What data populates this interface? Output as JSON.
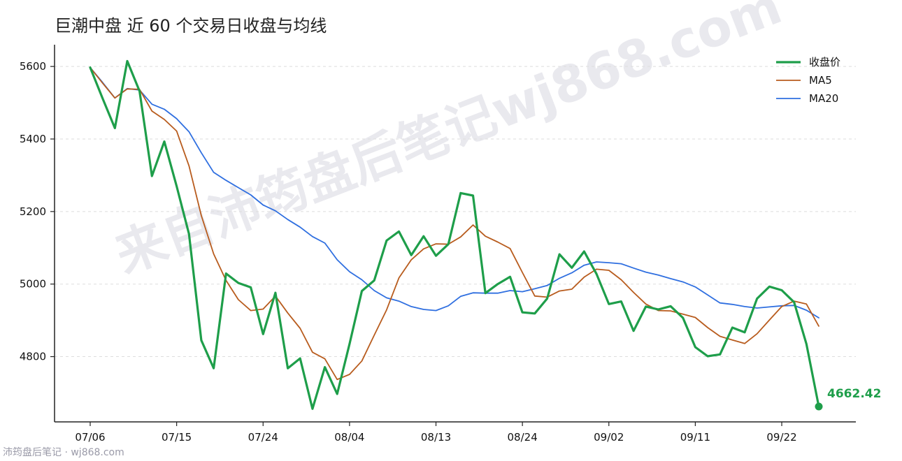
{
  "chart_data": {
    "type": "line",
    "title": "巨潮中盘 近 60 个交易日收盘与均线",
    "xlabel": "",
    "ylabel": "",
    "x_tick_labels": [
      "07/06",
      "07/15",
      "07/24",
      "08/04",
      "08/13",
      "08/24",
      "09/02",
      "09/11",
      "09/22"
    ],
    "x_tick_index": [
      0,
      7,
      14,
      21,
      28,
      35,
      42,
      49,
      56
    ],
    "ylim": [
      4620,
      5660
    ],
    "y_ticks": [
      4800,
      5000,
      5200,
      5400,
      5600
    ],
    "grid": "horizontal dashed",
    "legend_position": "top-right",
    "series": [
      {
        "name": "收盘价",
        "color": "#1e9e4a",
        "values": [
          5597,
          5512,
          5430,
          5615,
          5532,
          5298,
          5393,
          5270,
          5138,
          4845,
          4768,
          5029,
          5003,
          4991,
          4862,
          4976,
          4768,
          4795,
          4656,
          4771,
          4697,
          4835,
          4981,
          5010,
          5120,
          5145,
          5080,
          5132,
          5078,
          5110,
          5251,
          5244,
          4975,
          5000,
          5020,
          4922,
          4919,
          4960,
          5082,
          5045,
          5090,
          5028,
          4945,
          4952,
          4871,
          4938,
          4930,
          4939,
          4907,
          4826,
          4801,
          4806,
          4880,
          4867,
          4960,
          4993,
          4983,
          4950,
          4835,
          4662.42
        ]
      },
      {
        "name": "MA5",
        "color": "#b85c1e",
        "values": [
          5597,
          5554,
          5513,
          5538,
          5537,
          5477,
          5454,
          5422,
          5326,
          5189,
          5083,
          5010,
          4957,
          4927,
          4931,
          4967,
          4920,
          4878,
          4812,
          4794,
          4737,
          4751,
          4788,
          4859,
          4929,
          5017,
          5067,
          5097,
          5111,
          5110,
          5130,
          5163,
          5132,
          5116,
          5098,
          5032,
          4967,
          4964,
          4981,
          4986,
          5019,
          5041,
          5038,
          5012,
          4977,
          4945,
          4927,
          4926,
          4917,
          4908,
          4880,
          4856,
          4846,
          4836,
          4863,
          4901,
          4938,
          4953,
          4945,
          4884
        ]
      },
      {
        "name": "MA20",
        "color": "#2f6fe0",
        "values": [
          5597,
          5556,
          5513,
          5539,
          5535,
          5496,
          5482,
          5456,
          5420,
          5362,
          5308,
          5286,
          5266,
          5246,
          5218,
          5202,
          5178,
          5157,
          5131,
          5113,
          5067,
          5034,
          5012,
          4982,
          4962,
          4953,
          4938,
          4930,
          4927,
          4940,
          4966,
          4976,
          4975,
          4975,
          4982,
          4979,
          4987,
          4996,
          5016,
          5031,
          5052,
          5061,
          5059,
          5056,
          5044,
          5033,
          5025,
          5015,
          5006,
          4992,
          4970,
          4948,
          4944,
          4938,
          4934,
          4937,
          4940,
          4941,
          4928,
          4907
        ]
      }
    ],
    "last_value_label": "4662.42"
  },
  "watermark": "来自沛筠盘后笔记wj868.com",
  "footer": "沛筠盘后笔记 · wj868.com"
}
